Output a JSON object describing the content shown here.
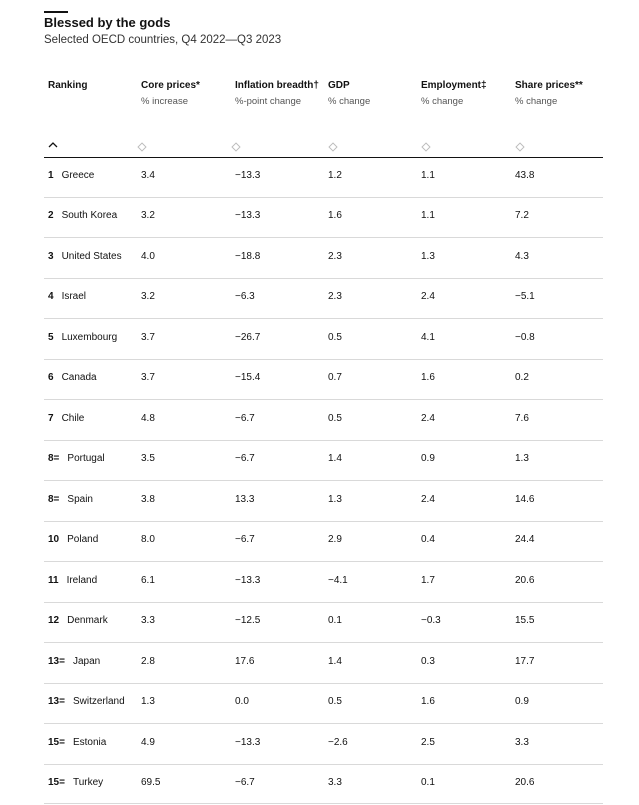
{
  "header": {
    "title": "Blessed by the gods",
    "subtitle": "Selected OECD countries, Q4 2022—Q3 2023"
  },
  "table": {
    "columns": [
      {
        "name": "Ranking"
      },
      {
        "name": "Core prices*",
        "unit": "% increase"
      },
      {
        "name": "Inflation breadth†",
        "unit": "%-point change"
      },
      {
        "name": "GDP",
        "unit": "% change"
      },
      {
        "name": "Employment‡",
        "unit": "% change"
      },
      {
        "name": "Share prices**",
        "unit": "% change"
      }
    ],
    "rows": [
      {
        "rank": "1",
        "country": "Greece",
        "values": [
          "3.4",
          "−13.3",
          "1.2",
          "1.1",
          "43.8"
        ]
      },
      {
        "rank": "2",
        "country": "South Korea",
        "values": [
          "3.2",
          "−13.3",
          "1.6",
          "1.1",
          "7.2"
        ]
      },
      {
        "rank": "3",
        "country": "United States",
        "values": [
          "4.0",
          "−18.8",
          "2.3",
          "1.3",
          "4.3"
        ]
      },
      {
        "rank": "4",
        "country": "Israel",
        "values": [
          "3.2",
          "−6.3",
          "2.3",
          "2.4",
          "−5.1"
        ]
      },
      {
        "rank": "5",
        "country": "Luxembourg",
        "values": [
          "3.7",
          "−26.7",
          "0.5",
          "4.1",
          "−0.8"
        ]
      },
      {
        "rank": "6",
        "country": "Canada",
        "values": [
          "3.7",
          "−15.4",
          "0.7",
          "1.6",
          "0.2"
        ]
      },
      {
        "rank": "7",
        "country": "Chile",
        "values": [
          "4.8",
          "−6.7",
          "0.5",
          "2.4",
          "7.6"
        ]
      },
      {
        "rank": "8=",
        "country": "Portugal",
        "values": [
          "3.5",
          "−6.7",
          "1.4",
          "0.9",
          "1.3"
        ]
      },
      {
        "rank": "8=",
        "country": "Spain",
        "values": [
          "3.8",
          "13.3",
          "1.3",
          "2.4",
          "14.6"
        ]
      },
      {
        "rank": "10",
        "country": "Poland",
        "values": [
          "8.0",
          "−6.7",
          "2.9",
          "0.4",
          "24.4"
        ]
      },
      {
        "rank": "11",
        "country": "Ireland",
        "values": [
          "6.1",
          "−13.3",
          "−4.1",
          "1.7",
          "20.6"
        ]
      },
      {
        "rank": "12",
        "country": "Denmark",
        "values": [
          "3.3",
          "−12.5",
          "0.1",
          "−0.3",
          "15.5"
        ]
      },
      {
        "rank": "13=",
        "country": "Japan",
        "values": [
          "2.8",
          "17.6",
          "1.4",
          "0.3",
          "17.7"
        ]
      },
      {
        "rank": "13=",
        "country": "Switzerland",
        "values": [
          "1.3",
          "0.0",
          "0.5",
          "1.6",
          "0.9"
        ]
      },
      {
        "rank": "15=",
        "country": "Estonia",
        "values": [
          "4.9",
          "−13.3",
          "−2.6",
          "2.5",
          "3.3"
        ]
      },
      {
        "rank": "15=",
        "country": "Turkey",
        "values": [
          "69.5",
          "−6.7",
          "3.3",
          "0.1",
          "20.6"
        ]
      }
    ]
  }
}
